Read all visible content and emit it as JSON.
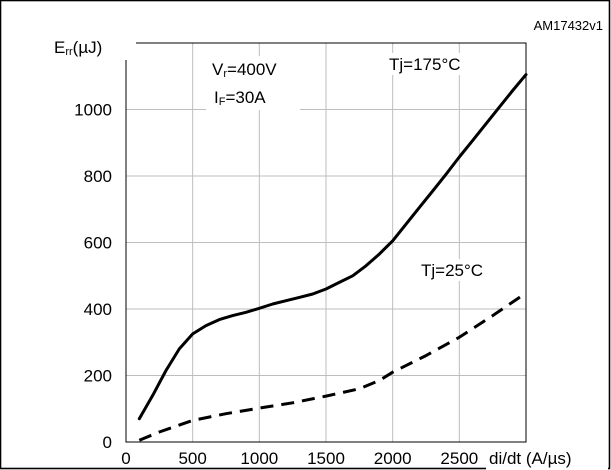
{
  "chart_data": {
    "type": "line",
    "figure_id": "AM17432v1",
    "ylabel_main": "E",
    "ylabel_sub": "rr",
    "ylabel_unit": "(µJ)",
    "xlabel": "di/dt (A/µs)",
    "xlim": [
      0,
      3000
    ],
    "ylim": [
      0,
      1200
    ],
    "x_ticks": [
      0,
      500,
      1000,
      1500,
      2000,
      2500
    ],
    "y_ticks": [
      0,
      200,
      400,
      600,
      800,
      1000
    ],
    "grid": true,
    "conditions": [
      {
        "main": "V",
        "sub": "r",
        "rest": "=400V"
      },
      {
        "main": "I",
        "sub": "F",
        "rest": "=30A"
      }
    ],
    "series": [
      {
        "name": "Tj=175°C",
        "style": "solid",
        "x": [
          100,
          200,
          300,
          400,
          500,
          600,
          700,
          800,
          900,
          1000,
          1100,
          1200,
          1300,
          1400,
          1500,
          1600,
          1700,
          1800,
          1900,
          2000,
          2100,
          2200,
          2300,
          2400,
          2500,
          2600,
          2700,
          2800,
          2900,
          3000
        ],
        "y": [
          70,
          140,
          215,
          280,
          325,
          350,
          368,
          380,
          390,
          402,
          415,
          425,
          435,
          445,
          460,
          480,
          500,
          530,
          565,
          605,
          655,
          705,
          755,
          805,
          857,
          907,
          957,
          1007,
          1057,
          1105
        ]
      },
      {
        "name": "Tj=25°C",
        "style": "dashed",
        "x": [
          100,
          250,
          500,
          750,
          1000,
          1250,
          1500,
          1750,
          1900,
          2000,
          2250,
          2500,
          2750,
          3000
        ],
        "y": [
          5,
          30,
          65,
          85,
          102,
          118,
          138,
          160,
          185,
          210,
          260,
          315,
          380,
          448
        ]
      }
    ]
  },
  "colors": {
    "line": "#000000",
    "grid": "#bdbdbd",
    "border": "#000000"
  }
}
